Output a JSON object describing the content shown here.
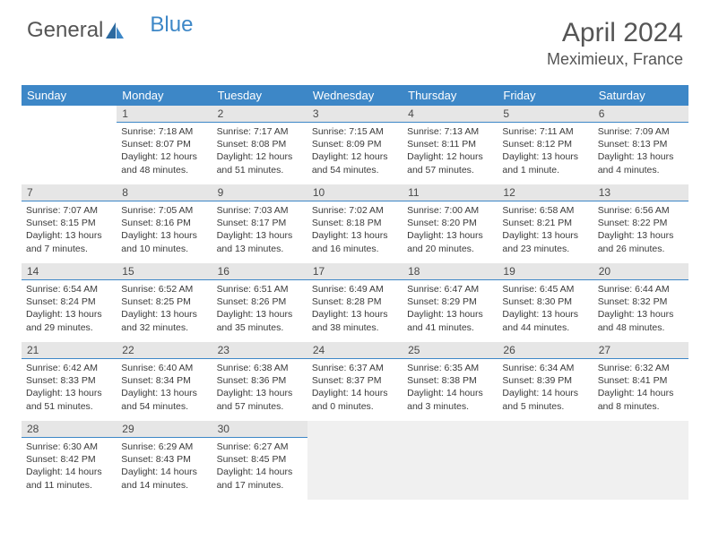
{
  "brand": {
    "part1": "General",
    "part2": "Blue"
  },
  "title": "April 2024",
  "location": "Meximieux, France",
  "colors": {
    "header_bg": "#3d87c7",
    "header_text": "#ffffff",
    "daynum_bg": "#e6e6e6",
    "daynum_border": "#3d87c7",
    "body_text": "#3a3a3a",
    "trailing_empty_bg": "#f0f0f0"
  },
  "fonts": {
    "month_title_size": 30,
    "location_size": 18,
    "dow_size": 13,
    "daynum_size": 12,
    "body_size": 10.5
  },
  "dow": [
    "Sunday",
    "Monday",
    "Tuesday",
    "Wednesday",
    "Thursday",
    "Friday",
    "Saturday"
  ],
  "layout": {
    "leading_blanks": 1,
    "days_in_month": 30
  },
  "days": {
    "1": {
      "sunrise": "7:18 AM",
      "sunset": "8:07 PM",
      "daylight": "12 hours and 48 minutes."
    },
    "2": {
      "sunrise": "7:17 AM",
      "sunset": "8:08 PM",
      "daylight": "12 hours and 51 minutes."
    },
    "3": {
      "sunrise": "7:15 AM",
      "sunset": "8:09 PM",
      "daylight": "12 hours and 54 minutes."
    },
    "4": {
      "sunrise": "7:13 AM",
      "sunset": "8:11 PM",
      "daylight": "12 hours and 57 minutes."
    },
    "5": {
      "sunrise": "7:11 AM",
      "sunset": "8:12 PM",
      "daylight": "13 hours and 1 minute."
    },
    "6": {
      "sunrise": "7:09 AM",
      "sunset": "8:13 PM",
      "daylight": "13 hours and 4 minutes."
    },
    "7": {
      "sunrise": "7:07 AM",
      "sunset": "8:15 PM",
      "daylight": "13 hours and 7 minutes."
    },
    "8": {
      "sunrise": "7:05 AM",
      "sunset": "8:16 PM",
      "daylight": "13 hours and 10 minutes."
    },
    "9": {
      "sunrise": "7:03 AM",
      "sunset": "8:17 PM",
      "daylight": "13 hours and 13 minutes."
    },
    "10": {
      "sunrise": "7:02 AM",
      "sunset": "8:18 PM",
      "daylight": "13 hours and 16 minutes."
    },
    "11": {
      "sunrise": "7:00 AM",
      "sunset": "8:20 PM",
      "daylight": "13 hours and 20 minutes."
    },
    "12": {
      "sunrise": "6:58 AM",
      "sunset": "8:21 PM",
      "daylight": "13 hours and 23 minutes."
    },
    "13": {
      "sunrise": "6:56 AM",
      "sunset": "8:22 PM",
      "daylight": "13 hours and 26 minutes."
    },
    "14": {
      "sunrise": "6:54 AM",
      "sunset": "8:24 PM",
      "daylight": "13 hours and 29 minutes."
    },
    "15": {
      "sunrise": "6:52 AM",
      "sunset": "8:25 PM",
      "daylight": "13 hours and 32 minutes."
    },
    "16": {
      "sunrise": "6:51 AM",
      "sunset": "8:26 PM",
      "daylight": "13 hours and 35 minutes."
    },
    "17": {
      "sunrise": "6:49 AM",
      "sunset": "8:28 PM",
      "daylight": "13 hours and 38 minutes."
    },
    "18": {
      "sunrise": "6:47 AM",
      "sunset": "8:29 PM",
      "daylight": "13 hours and 41 minutes."
    },
    "19": {
      "sunrise": "6:45 AM",
      "sunset": "8:30 PM",
      "daylight": "13 hours and 44 minutes."
    },
    "20": {
      "sunrise": "6:44 AM",
      "sunset": "8:32 PM",
      "daylight": "13 hours and 48 minutes."
    },
    "21": {
      "sunrise": "6:42 AM",
      "sunset": "8:33 PM",
      "daylight": "13 hours and 51 minutes."
    },
    "22": {
      "sunrise": "6:40 AM",
      "sunset": "8:34 PM",
      "daylight": "13 hours and 54 minutes."
    },
    "23": {
      "sunrise": "6:38 AM",
      "sunset": "8:36 PM",
      "daylight": "13 hours and 57 minutes."
    },
    "24": {
      "sunrise": "6:37 AM",
      "sunset": "8:37 PM",
      "daylight": "14 hours and 0 minutes."
    },
    "25": {
      "sunrise": "6:35 AM",
      "sunset": "8:38 PM",
      "daylight": "14 hours and 3 minutes."
    },
    "26": {
      "sunrise": "6:34 AM",
      "sunset": "8:39 PM",
      "daylight": "14 hours and 5 minutes."
    },
    "27": {
      "sunrise": "6:32 AM",
      "sunset": "8:41 PM",
      "daylight": "14 hours and 8 minutes."
    },
    "28": {
      "sunrise": "6:30 AM",
      "sunset": "8:42 PM",
      "daylight": "14 hours and 11 minutes."
    },
    "29": {
      "sunrise": "6:29 AM",
      "sunset": "8:43 PM",
      "daylight": "14 hours and 14 minutes."
    },
    "30": {
      "sunrise": "6:27 AM",
      "sunset": "8:45 PM",
      "daylight": "14 hours and 17 minutes."
    }
  },
  "labels": {
    "sunrise": "Sunrise: ",
    "sunset": "Sunset: ",
    "daylight": "Daylight: "
  }
}
